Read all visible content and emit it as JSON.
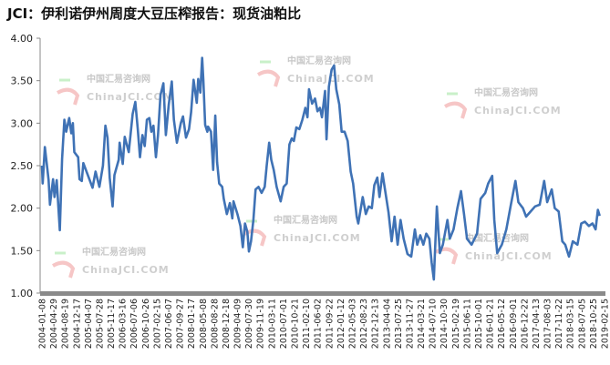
{
  "chart_data": {
    "type": "line",
    "title": "JCI：伊利诺伊州周度大豆压榨报告：现货油粕比",
    "xlabel": "",
    "ylabel": "",
    "ylim": [
      1.0,
      4.0
    ],
    "yticks": [
      "1.00",
      "1.50",
      "2.00",
      "2.50",
      "3.00",
      "3.50",
      "4.00"
    ],
    "grid": false,
    "legend": "none",
    "line_color": "#3f72b5",
    "xticks": [
      "2004-01-08",
      "2004-04-29",
      "2004-08-19",
      "2004-12-17",
      "2005-04-07",
      "2005-07-28",
      "2005-11-17",
      "2006-03-16",
      "2006-07-06",
      "2006-10-26",
      "2007-02-15",
      "2007-06-07",
      "2007-09-27",
      "2008-01-17",
      "2008-05-08",
      "2008-08-28",
      "2008-12-18",
      "2009-04-09",
      "2009-07-30",
      "2009-11-19",
      "2010-03-11",
      "2010-07-01",
      "2010-10-21",
      "2011-02-10",
      "2011-06-02",
      "2011-09-22",
      "2012-01-12",
      "2012-05-03",
      "2012-08-23",
      "2012-12-13",
      "2013-04-04",
      "2013-07-25",
      "2013-11-27",
      "2014-03-21",
      "2014-07-10",
      "2014-10-30",
      "2015-02-19",
      "2015-06-11",
      "2015-10-01",
      "2016-01-21",
      "2016-05-12",
      "2016-09-01",
      "2016-12-22",
      "2017-04-13",
      "2017-08-03",
      "2017-11-22",
      "2018-03-15",
      "2018-07-05",
      "2018-10-25",
      "2019-02-15"
    ],
    "points": [
      [
        "2004-01-08",
        2.5
      ],
      [
        "2004-01-15",
        2.29
      ],
      [
        "2004-02-06",
        2.72
      ],
      [
        "2004-03-13",
        2.33
      ],
      [
        "2004-03-27",
        2.04
      ],
      [
        "2004-04-26",
        2.34
      ],
      [
        "2004-05-10",
        2.13
      ],
      [
        "2004-06-01",
        2.33
      ],
      [
        "2004-07-01",
        1.74
      ],
      [
        "2004-07-24",
        2.58
      ],
      [
        "2004-08-15",
        3.04
      ],
      [
        "2004-09-02",
        2.9
      ],
      [
        "2004-10-01",
        3.06
      ],
      [
        "2004-10-22",
        2.88
      ],
      [
        "2004-11-06",
        3.0
      ],
      [
        "2004-11-20",
        2.66
      ],
      [
        "2004-12-28",
        2.6
      ],
      [
        "2005-01-10",
        2.34
      ],
      [
        "2005-02-02",
        2.32
      ],
      [
        "2005-02-17",
        2.53
      ],
      [
        "2005-04-02",
        2.39
      ],
      [
        "2005-05-18",
        2.24
      ],
      [
        "2005-06-17",
        2.43
      ],
      [
        "2005-07-24",
        2.25
      ],
      [
        "2005-08-28",
        2.5
      ],
      [
        "2005-09-21",
        2.97
      ],
      [
        "2005-10-12",
        2.83
      ],
      [
        "2005-11-02",
        2.36
      ],
      [
        "2005-12-01",
        2.02
      ],
      [
        "2005-12-19",
        2.39
      ],
      [
        "2006-01-30",
        2.57
      ],
      [
        "2006-02-08",
        2.77
      ],
      [
        "2006-03-10",
        2.52
      ],
      [
        "2006-03-30",
        2.84
      ],
      [
        "2006-05-08",
        2.66
      ],
      [
        "2006-06-16",
        3.11
      ],
      [
        "2006-07-12",
        3.25
      ],
      [
        "2006-08-05",
        2.93
      ],
      [
        "2006-08-26",
        2.6
      ],
      [
        "2006-09-19",
        2.86
      ],
      [
        "2006-10-12",
        2.73
      ],
      [
        "2006-11-02",
        3.04
      ],
      [
        "2006-11-26",
        3.06
      ],
      [
        "2006-12-16",
        2.9
      ],
      [
        "2007-01-06",
        2.97
      ],
      [
        "2007-01-30",
        2.6
      ],
      [
        "2007-02-19",
        2.86
      ],
      [
        "2007-03-15",
        3.33
      ],
      [
        "2007-04-13",
        3.47
      ],
      [
        "2007-05-07",
        2.86
      ],
      [
        "2007-06-05",
        3.22
      ],
      [
        "2007-07-04",
        3.49
      ],
      [
        "2007-07-25",
        3.04
      ],
      [
        "2007-08-23",
        2.77
      ],
      [
        "2007-10-01",
        3.0
      ],
      [
        "2007-10-22",
        3.08
      ],
      [
        "2007-11-21",
        2.83
      ],
      [
        "2007-12-20",
        2.93
      ],
      [
        "2008-01-10",
        3.13
      ],
      [
        "2008-02-03",
        3.51
      ],
      [
        "2008-03-05",
        3.24
      ],
      [
        "2008-03-20",
        3.52
      ],
      [
        "2008-04-09",
        3.36
      ],
      [
        "2008-04-27",
        3.77
      ],
      [
        "2008-05-09",
        3.51
      ],
      [
        "2008-05-27",
        2.98
      ],
      [
        "2008-06-17",
        2.9
      ],
      [
        "2008-06-24",
        2.96
      ],
      [
        "2008-07-23",
        2.9
      ],
      [
        "2008-08-13",
        2.45
      ],
      [
        "2008-09-03",
        3.09
      ],
      [
        "2008-09-21",
        2.54
      ],
      [
        "2008-10-11",
        2.29
      ],
      [
        "2008-11-10",
        2.25
      ],
      [
        "2008-11-25",
        2.11
      ],
      [
        "2008-12-25",
        1.93
      ],
      [
        "2009-01-24",
        2.06
      ],
      [
        "2009-02-17",
        1.88
      ],
      [
        "2009-03-01",
        2.08
      ],
      [
        "2009-04-08",
        1.93
      ],
      [
        "2009-05-08",
        1.79
      ],
      [
        "2009-05-31",
        1.54
      ],
      [
        "2009-06-21",
        1.82
      ],
      [
        "2009-07-15",
        1.72
      ],
      [
        "2009-07-30",
        1.49
      ],
      [
        "2009-08-19",
        1.61
      ],
      [
        "2009-09-12",
        1.86
      ],
      [
        "2009-10-03",
        2.22
      ],
      [
        "2009-11-01",
        2.25
      ],
      [
        "2009-12-01",
        2.18
      ],
      [
        "2009-12-31",
        2.25
      ],
      [
        "2010-01-20",
        2.5
      ],
      [
        "2010-02-13",
        2.77
      ],
      [
        "2010-03-06",
        2.57
      ],
      [
        "2010-03-30",
        2.45
      ],
      [
        "2010-04-28",
        2.25
      ],
      [
        "2010-06-06",
        2.08
      ],
      [
        "2010-07-05",
        2.25
      ],
      [
        "2010-08-04",
        2.29
      ],
      [
        "2010-08-31",
        2.75
      ],
      [
        "2010-09-23",
        2.82
      ],
      [
        "2010-10-14",
        2.79
      ],
      [
        "2010-11-07",
        2.95
      ],
      [
        "2010-12-06",
        2.93
      ],
      [
        "2011-01-05",
        3.04
      ],
      [
        "2011-02-03",
        3.18
      ],
      [
        "2011-02-24",
        3.07
      ],
      [
        "2011-03-11",
        3.4
      ],
      [
        "2011-04-10",
        3.23
      ],
      [
        "2011-05-09",
        3.29
      ],
      [
        "2011-06-02",
        3.14
      ],
      [
        "2011-06-26",
        3.18
      ],
      [
        "2011-07-16",
        3.07
      ],
      [
        "2011-08-15",
        3.38
      ],
      [
        "2011-08-30",
        2.81
      ],
      [
        "2011-09-22",
        3.43
      ],
      [
        "2011-10-19",
        3.63
      ],
      [
        "2011-11-12",
        3.68
      ],
      [
        "2011-12-03",
        3.4
      ],
      [
        "2012-01-02",
        3.22
      ],
      [
        "2012-01-25",
        2.9
      ],
      [
        "2012-02-23",
        2.9
      ],
      [
        "2012-03-24",
        2.79
      ],
      [
        "2012-04-23",
        2.43
      ],
      [
        "2012-05-17",
        2.29
      ],
      [
        "2012-06-21",
        1.9
      ],
      [
        "2012-07-06",
        1.82
      ],
      [
        "2012-08-19",
        2.13
      ],
      [
        "2012-09-18",
        1.93
      ],
      [
        "2012-10-17",
        2.02
      ],
      [
        "2012-11-16",
        2.0
      ],
      [
        "2012-12-10",
        2.27
      ],
      [
        "2013-01-09",
        2.36
      ],
      [
        "2013-01-30",
        2.13
      ],
      [
        "2013-03-01",
        2.41
      ],
      [
        "2013-03-30",
        2.18
      ],
      [
        "2013-04-29",
        1.95
      ],
      [
        "2013-05-29",
        1.61
      ],
      [
        "2013-06-27",
        1.9
      ],
      [
        "2013-07-27",
        1.57
      ],
      [
        "2013-08-25",
        1.86
      ],
      [
        "2013-09-24",
        1.64
      ],
      [
        "2013-11-01",
        1.46
      ],
      [
        "2013-12-07",
        1.43
      ],
      [
        "2014-01-12",
        1.75
      ],
      [
        "2014-02-04",
        1.57
      ],
      [
        "2014-03-06",
        1.68
      ],
      [
        "2014-04-05",
        1.57
      ],
      [
        "2014-05-04",
        1.7
      ],
      [
        "2014-06-03",
        1.64
      ],
      [
        "2014-06-26",
        1.36
      ],
      [
        "2014-07-17",
        1.16
      ],
      [
        "2014-08-16",
        2.02
      ],
      [
        "2014-09-14",
        1.47
      ],
      [
        "2014-10-14",
        1.57
      ],
      [
        "2014-11-27",
        1.86
      ],
      [
        "2014-12-21",
        1.64
      ],
      [
        "2015-01-26",
        1.75
      ],
      [
        "2015-03-05",
        2.0
      ],
      [
        "2015-04-10",
        2.2
      ],
      [
        "2015-05-09",
        1.93
      ],
      [
        "2015-06-08",
        1.64
      ],
      [
        "2015-07-22",
        1.57
      ],
      [
        "2015-09-14",
        1.7
      ],
      [
        "2015-10-19",
        2.11
      ],
      [
        "2015-12-03",
        2.18
      ],
      [
        "2016-01-01",
        2.29
      ],
      [
        "2016-02-09",
        2.38
      ],
      [
        "2016-03-01",
        1.86
      ],
      [
        "2016-03-30",
        1.47
      ],
      [
        "2016-05-14",
        1.57
      ],
      [
        "2016-06-27",
        1.75
      ],
      [
        "2016-08-11",
        2.04
      ],
      [
        "2016-09-24",
        2.32
      ],
      [
        "2016-10-23",
        2.07
      ],
      [
        "2016-12-07",
        2.0
      ],
      [
        "2017-01-07",
        1.9
      ],
      [
        "2017-02-20",
        1.96
      ],
      [
        "2017-04-05",
        2.02
      ],
      [
        "2017-05-20",
        2.04
      ],
      [
        "2017-07-03",
        2.32
      ],
      [
        "2017-08-02",
        2.07
      ],
      [
        "2017-09-15",
        2.22
      ],
      [
        "2017-10-15",
        2.0
      ],
      [
        "2017-11-22",
        1.96
      ],
      [
        "2017-12-28",
        1.61
      ],
      [
        "2018-01-26",
        1.57
      ],
      [
        "2018-03-03",
        1.43
      ],
      [
        "2018-04-10",
        1.61
      ],
      [
        "2018-05-25",
        1.57
      ],
      [
        "2018-07-02",
        1.82
      ],
      [
        "2018-08-07",
        1.84
      ],
      [
        "2018-09-14",
        1.79
      ],
      [
        "2018-10-20",
        1.82
      ],
      [
        "2018-11-19",
        1.75
      ],
      [
        "2018-12-12",
        1.98
      ],
      [
        "2018-12-30",
        1.91
      ]
    ]
  },
  "watermark": {
    "cn": "中国汇易咨询网",
    "en": "ChinaJCI.COM"
  }
}
